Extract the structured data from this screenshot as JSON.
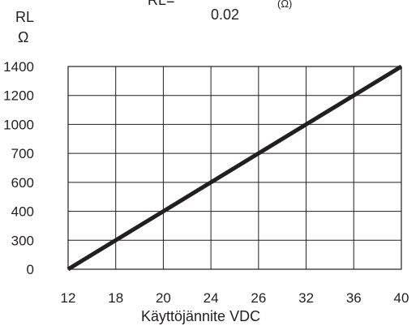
{
  "chart_data": {
    "type": "line",
    "formula": {
      "lhs": "RL=",
      "denominator": "0.02",
      "unit": "(Ω)"
    },
    "ylabel": "RL",
    "yunit": "Ω",
    "xlabel": "Käyttöjännite VDC",
    "x_tick_labels": [
      "12",
      "18",
      "20",
      "24",
      "26",
      "32",
      "36",
      "40"
    ],
    "y_tick_labels": [
      "0",
      "300",
      "400",
      "600",
      "700",
      "1000",
      "1200",
      "1400"
    ],
    "series": [
      {
        "x": [
          "12",
          "40"
        ],
        "y": [
          "0",
          "1400"
        ]
      }
    ],
    "grid": true,
    "legend": "none"
  }
}
